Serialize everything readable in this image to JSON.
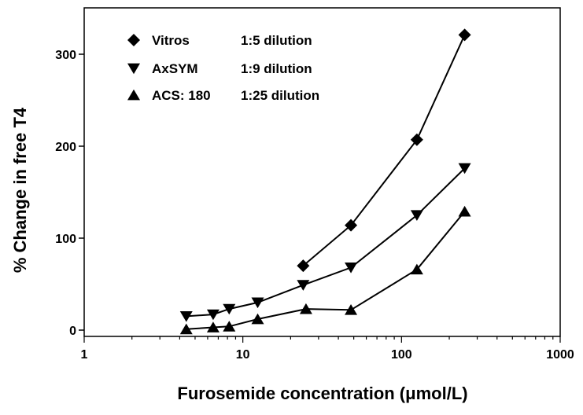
{
  "chart_data": {
    "type": "line",
    "xlabel": "Furosemide concentration (μmol/L)",
    "ylabel": "% Change in free T4",
    "x_scale": "log",
    "xlim": [
      1,
      1000
    ],
    "ylim": [
      0,
      350
    ],
    "x_ticks": [
      "1",
      "10",
      "100",
      "1000"
    ],
    "y_ticks": [
      "0",
      "100",
      "200",
      "300"
    ],
    "x_tick_values": [
      1,
      10,
      100,
      1000
    ],
    "y_tick_values": [
      0,
      100,
      200,
      300
    ],
    "grid": false,
    "legend_position": "top-left",
    "series": [
      {
        "name": "Vitros",
        "dilution": "1:5 dilution",
        "marker": "diamond",
        "points": [
          [
            24,
            70
          ],
          [
            48,
            114
          ],
          [
            125,
            207
          ],
          [
            250,
            321
          ]
        ]
      },
      {
        "name": "AxSYM",
        "dilution": "1:9 dilution",
        "marker": "triangle-down",
        "points": [
          [
            4.4,
            15
          ],
          [
            6.5,
            17
          ],
          [
            8.2,
            23
          ],
          [
            12.4,
            30
          ],
          [
            24,
            49
          ],
          [
            48,
            68
          ],
          [
            125,
            125
          ],
          [
            250,
            176
          ]
        ]
      },
      {
        "name": "ACS: 180",
        "dilution": "1:25 dilution",
        "marker": "triangle-up",
        "points": [
          [
            4.4,
            1
          ],
          [
            6.5,
            3
          ],
          [
            8.2,
            4
          ],
          [
            12.4,
            12
          ],
          [
            25,
            23
          ],
          [
            48,
            22
          ],
          [
            125,
            66
          ],
          [
            250,
            129
          ]
        ]
      }
    ]
  }
}
